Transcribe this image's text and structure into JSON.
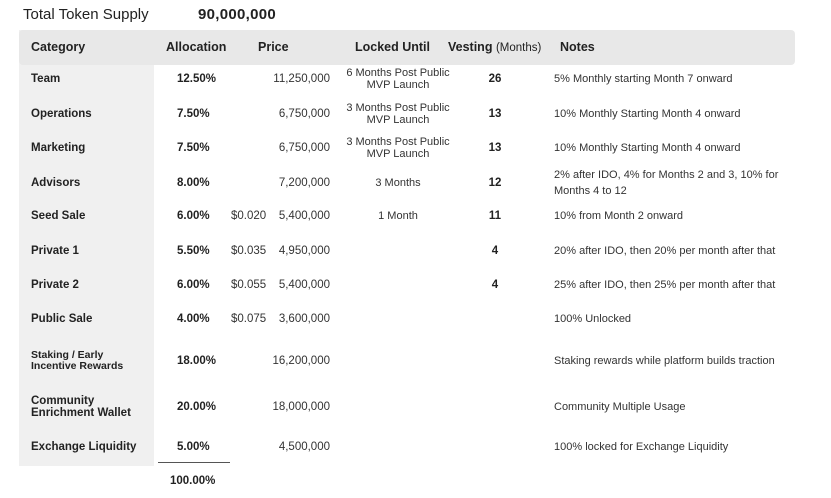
{
  "supply": {
    "label": "Total Token Supply",
    "value": "90,000,000"
  },
  "table": {
    "headers": {
      "category": "Category",
      "allocation": "Allocation",
      "price": "Price",
      "locked_until": "Locked Until",
      "vesting": "Vesting",
      "vesting_unit": "(Months)",
      "notes": "Notes"
    },
    "rows": [
      {
        "category": "Team",
        "allocation": "12.50%",
        "unit_price": "",
        "amount": "11,250,000",
        "locked": "6 Months Post Public MVP Launch",
        "vesting": "26",
        "notes": "5% Monthly starting Month 7 onward"
      },
      {
        "category": "Operations",
        "allocation": "7.50%",
        "unit_price": "",
        "amount": "6,750,000",
        "locked": "3 Months Post Public MVP Launch",
        "vesting": "13",
        "notes": "10% Monthly Starting Month 4 onward"
      },
      {
        "category": "Marketing",
        "allocation": "7.50%",
        "unit_price": "",
        "amount": "6,750,000",
        "locked": "3 Months Post Public MVP Launch",
        "vesting": "13",
        "notes": "10% Monthly Starting Month 4 onward"
      },
      {
        "category": "Advisors",
        "allocation": "8.00%",
        "unit_price": "",
        "amount": "7,200,000",
        "locked": "3 Months",
        "vesting": "12",
        "notes": "2% after IDO, 4% for Months 2 and 3, 10% for Months 4 to 12"
      },
      {
        "category": "Seed Sale",
        "allocation": "6.00%",
        "unit_price": "$0.020",
        "amount": "5,400,000",
        "locked": "1 Month",
        "vesting": "11",
        "notes": "10% from Month 2 onward"
      },
      {
        "category": "Private 1",
        "allocation": "5.50%",
        "unit_price": "$0.035",
        "amount": "4,950,000",
        "locked": "",
        "vesting": "4",
        "notes": "20% after IDO, then 20% per month after that"
      },
      {
        "category": "Private 2",
        "allocation": "6.00%",
        "unit_price": "$0.055",
        "amount": "5,400,000",
        "locked": "",
        "vesting": "4",
        "notes": "25%  after IDO, then 25% per month after that"
      },
      {
        "category": "Public Sale",
        "allocation": "4.00%",
        "unit_price": "$0.075",
        "amount": "3,600,000",
        "locked": "",
        "vesting": "",
        "notes": "100% Unlocked"
      },
      {
        "category": "Staking / Early Incentive Rewards",
        "allocation": "18.00%",
        "unit_price": "",
        "amount": "16,200,000",
        "locked": "",
        "vesting": "",
        "notes": "Staking rewards while platform builds traction"
      },
      {
        "category": "Community Enrichment Wallet",
        "allocation": "20.00%",
        "unit_price": "",
        "amount": "18,000,000",
        "locked": "",
        "vesting": "",
        "notes": "Community Multiple Usage"
      },
      {
        "category": "Exchange Liquidity",
        "allocation": "5.00%",
        "unit_price": "",
        "amount": "4,500,000",
        "locked": "",
        "vesting": "",
        "notes": "100% locked for Exchange Liquidity"
      }
    ],
    "total_allocation": "100.00%"
  }
}
